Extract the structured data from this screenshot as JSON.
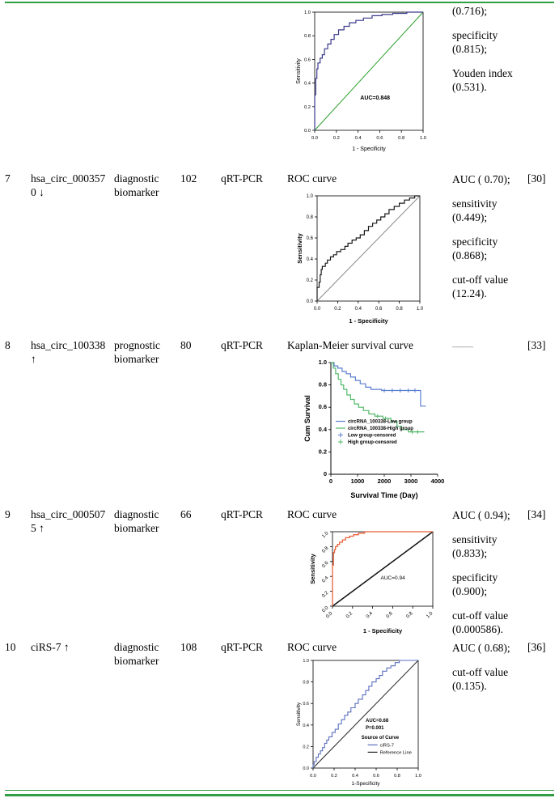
{
  "colors": {
    "accent_green": "#2f9e44",
    "dash_gray": "#8d8d8d"
  },
  "table": {
    "rows": [
      {
        "num": "",
        "name": "",
        "type": "",
        "n": "",
        "method": "",
        "evidence_label": "",
        "results": [
          "(0.716);",
          "specificity (0.815);",
          "Youden index (0.531)."
        ],
        "ref": ""
      },
      {
        "num": "7",
        "name": "hsa_circ_0003570 ↓",
        "type": "diagnostic biomarker",
        "n": "102",
        "method": "qRT-PCR",
        "evidence_label": "ROC curve",
        "results": [
          "AUC ( 0.70);",
          "sensitivity (0.449);",
          "specificity (0.868);",
          "cut-off value (12.24)."
        ],
        "ref": "[30]"
      },
      {
        "num": "8",
        "name": "hsa_circ_100338 ↑",
        "type": "prognostic biomarker",
        "n": "80",
        "method": "qRT-PCR",
        "evidence_label": "Kaplan-Meier survival curve",
        "results": [
          "——"
        ],
        "ref": "[33]"
      },
      {
        "num": "9",
        "name": "hsa_circ_0005075 ↑",
        "type": "diagnostic biomarker",
        "n": "66",
        "method": "qRT-PCR",
        "evidence_label": "ROC curve",
        "results": [
          "AUC ( 0.94);",
          "sensitivity (0.833);",
          "specificity (0.900);",
          "cut-off value (0.000586)."
        ],
        "ref": "[34]"
      },
      {
        "num": "10",
        "name": "ciRS-7 ↑",
        "type": "diagnostic biomarker",
        "n": "108",
        "method": "qRT-PCR",
        "evidence_label": "ROC curve",
        "results": [
          "AUC ( 0.68);",
          "cut-off value (0.135)."
        ],
        "ref": "[36]"
      }
    ]
  },
  "chart_data": [
    {
      "type": "line",
      "subtype": "roc",
      "title": "",
      "width": 170,
      "height": 180,
      "margins": {
        "l": 26,
        "r": 10,
        "t": 6,
        "b": 28
      },
      "xrange": [
        0,
        1
      ],
      "yrange": [
        0,
        1
      ],
      "xticks": [
        0,
        0.2,
        0.4,
        0.6,
        0.8,
        1
      ],
      "xtick_labels": [
        "0.0",
        "0.2",
        "0.4",
        "0.6",
        "0.8",
        "1.0"
      ],
      "yticks": [
        0,
        0.2,
        0.4,
        0.6,
        0.8,
        1
      ],
      "ytick_labels": [
        "0.0",
        "0.2",
        "0.4",
        "0.6",
        "0.8",
        "1.0"
      ],
      "xlabel": "1 - Specificity",
      "ylabel": "Sensitivity",
      "frame": "box",
      "tick_size": 5.8,
      "label_size": 7,
      "diagonal": {
        "color": "#2ca02c",
        "width": 1
      },
      "series": [
        {
          "name": "ROC curve",
          "color": "#3a3a8c",
          "width": 1.2,
          "step": "vh",
          "points": [
            [
              0,
              0
            ],
            [
              0,
              0.18
            ],
            [
              0.01,
              0.3
            ],
            [
              0.02,
              0.44
            ],
            [
              0.03,
              0.52
            ],
            [
              0.05,
              0.57
            ],
            [
              0.07,
              0.61
            ],
            [
              0.09,
              0.64
            ],
            [
              0.12,
              0.69
            ],
            [
              0.15,
              0.73
            ],
            [
              0.18,
              0.77
            ],
            [
              0.22,
              0.81
            ],
            [
              0.27,
              0.85
            ],
            [
              0.32,
              0.88
            ],
            [
              0.38,
              0.91
            ],
            [
              0.45,
              0.93
            ],
            [
              0.53,
              0.95
            ],
            [
              0.62,
              0.97
            ],
            [
              0.72,
              0.98
            ],
            [
              0.85,
              0.99
            ],
            [
              1,
              1
            ]
          ]
        }
      ],
      "annotations": [
        {
          "text": "AUC=0.848",
          "x": 0.42,
          "y": 0.26,
          "size": 7,
          "bold": true
        }
      ]
    },
    {
      "type": "line",
      "subtype": "roc",
      "title": "",
      "width": 164,
      "height": 168,
      "margins": {
        "l": 27,
        "r": 10,
        "t": 8,
        "b": 30
      },
      "xrange": [
        0,
        1
      ],
      "yrange": [
        0,
        1
      ],
      "xticks": [
        0,
        0.2,
        0.4,
        0.6,
        0.8,
        1
      ],
      "xtick_labels": [
        "0.0",
        "0.2",
        "0.4",
        "0.6",
        "0.8",
        "1.0"
      ],
      "yticks": [
        0,
        0.2,
        0.4,
        0.6,
        0.8,
        1
      ],
      "ytick_labels": [
        "0.0",
        "0.2",
        "0.4",
        "0.6",
        "0.8",
        "1.0"
      ],
      "xlabel": "1 - Specificity",
      "ylabel": "Sensitivity",
      "frame": "box",
      "tick_size": 6,
      "label_size": 7.5,
      "label_bold": true,
      "diagonal": {
        "color": "#8a8a8a",
        "width": 1
      },
      "series": [
        {
          "name": "ROC curve",
          "color": "#1a1a1a",
          "width": 1.2,
          "step": "vh",
          "points": [
            [
              0,
              0
            ],
            [
              0,
              0.09
            ],
            [
              0.02,
              0.13
            ],
            [
              0.03,
              0.18
            ],
            [
              0.04,
              0.25
            ],
            [
              0.05,
              0.3
            ],
            [
              0.08,
              0.33
            ],
            [
              0.1,
              0.36
            ],
            [
              0.13,
              0.39
            ],
            [
              0.16,
              0.42
            ],
            [
              0.19,
              0.44
            ],
            [
              0.23,
              0.47
            ],
            [
              0.27,
              0.49
            ],
            [
              0.3,
              0.52
            ],
            [
              0.34,
              0.55
            ],
            [
              0.38,
              0.58
            ],
            [
              0.42,
              0.6
            ],
            [
              0.46,
              0.63
            ],
            [
              0.5,
              0.67
            ],
            [
              0.54,
              0.71
            ],
            [
              0.58,
              0.74
            ],
            [
              0.62,
              0.77
            ],
            [
              0.66,
              0.8
            ],
            [
              0.7,
              0.83
            ],
            [
              0.75,
              0.87
            ],
            [
              0.8,
              0.9
            ],
            [
              0.85,
              0.93
            ],
            [
              0.9,
              0.96
            ],
            [
              0.95,
              0.98
            ],
            [
              1,
              1
            ]
          ]
        }
      ],
      "annotations": []
    },
    {
      "type": "line",
      "subtype": "kaplan-meier",
      "title": "",
      "width": 176,
      "height": 178,
      "margins": {
        "l": 34,
        "r": 10,
        "t": 8,
        "b": 32
      },
      "xrange": [
        0,
        4000
      ],
      "yrange": [
        0,
        1
      ],
      "xticks": [
        0,
        1000,
        2000,
        3000,
        4000
      ],
      "xtick_labels": [
        "0",
        "1000",
        "2000",
        "3000",
        "4000"
      ],
      "yticks": [
        0,
        0.2,
        0.4,
        0.6,
        0.8,
        1
      ],
      "ytick_labels": [
        "0",
        "0.2",
        "0.4",
        "0.6",
        "0.8",
        "1.0"
      ],
      "xlabel": "Survival Time (Day)",
      "ylabel": "Cum Survival",
      "frame": "lb",
      "tick_size": 7.5,
      "tick_bold": true,
      "label_size": 9,
      "label_bold": true,
      "series": [
        {
          "name": "circRNA_100338-Low group",
          "color": "#5b7fd0",
          "width": 1.2,
          "step": "hv",
          "points": [
            [
              0,
              1
            ],
            [
              120,
              0.97
            ],
            [
              260,
              0.95
            ],
            [
              420,
              0.92
            ],
            [
              580,
              0.9
            ],
            [
              740,
              0.87
            ],
            [
              920,
              0.84
            ],
            [
              1100,
              0.81
            ],
            [
              1300,
              0.78
            ],
            [
              1500,
              0.76
            ],
            [
              1900,
              0.75
            ],
            [
              3300,
              0.75
            ],
            [
              3360,
              0.61
            ],
            [
              3560,
              0.61
            ]
          ],
          "censored": [
            [
              2000,
              0.75
            ],
            [
              2300,
              0.75
            ],
            [
              2600,
              0.75
            ],
            [
              2900,
              0.75
            ],
            [
              3150,
              0.75
            ]
          ]
        },
        {
          "name": "circRNA_100338-High group",
          "color": "#53b96a",
          "width": 1.2,
          "step": "hv",
          "points": [
            [
              0,
              1
            ],
            [
              90,
              0.95
            ],
            [
              180,
              0.9
            ],
            [
              280,
              0.85
            ],
            [
              380,
              0.8
            ],
            [
              480,
              0.76
            ],
            [
              600,
              0.71
            ],
            [
              740,
              0.67
            ],
            [
              880,
              0.63
            ],
            [
              1040,
              0.6
            ],
            [
              1220,
              0.57
            ],
            [
              1420,
              0.54
            ],
            [
              1650,
              0.52
            ],
            [
              1950,
              0.5
            ],
            [
              2250,
              0.47
            ],
            [
              2480,
              0.43
            ],
            [
              2650,
              0.4
            ],
            [
              2900,
              0.38
            ],
            [
              3500,
              0.38
            ]
          ],
          "censored": [
            [
              1750,
              0.52
            ],
            [
              2050,
              0.5
            ],
            [
              3050,
              0.38
            ],
            [
              3250,
              0.38
            ]
          ]
        }
      ],
      "annotations": [],
      "legend": {
        "x": 180,
        "y": 0.46,
        "size": 6,
        "bold": true,
        "line_height": 8.5,
        "entries": [
          {
            "swatch": "line",
            "color": "#5b7fd0",
            "label": "circRNA_100338-Low group"
          },
          {
            "swatch": "line",
            "color": "#53b96a",
            "label": "circRNA_100338-High group"
          },
          {
            "swatch": "plus",
            "color": "#5b7fd0",
            "label": "Low group-censored"
          },
          {
            "swatch": "plus",
            "color": "#53b96a",
            "label": "High group-censored"
          }
        ]
      }
    },
    {
      "type": "line",
      "subtype": "roc",
      "title": "",
      "width": 168,
      "height": 136,
      "margins": {
        "l": 30,
        "r": 14,
        "t": 8,
        "b": 36
      },
      "xrange": [
        0,
        1
      ],
      "yrange": [
        0,
        1
      ],
      "xticks": [
        0,
        0.2,
        0.4,
        0.6,
        0.8,
        1
      ],
      "xtick_labels": [
        "0.0",
        "0.2",
        "0.4",
        "0.6",
        "0.8",
        "1.0"
      ],
      "yticks": [
        0,
        0.2,
        0.4,
        0.6,
        0.8,
        1
      ],
      "ytick_labels": [
        "0.0",
        "0.2",
        "0.4",
        "0.6",
        "0.8",
        "1.0"
      ],
      "xlabel": "1 - Specificity",
      "ylabel": "Sensitivity",
      "frame": "box",
      "tick_size": 6,
      "label_size": 7.5,
      "label_bold": true,
      "xtick_rotate": -45,
      "ytick_rotate": -45,
      "diagonal": {
        "color": "#111111",
        "width": 1.5
      },
      "series": [
        {
          "name": "ROC curve",
          "color": "#e8623c",
          "width": 1.3,
          "step": "vh",
          "points": [
            [
              0,
              0
            ],
            [
              0,
              0.47
            ],
            [
              0.01,
              0.55
            ],
            [
              0.02,
              0.72
            ],
            [
              0.03,
              0.76
            ],
            [
              0.05,
              0.8
            ],
            [
              0.07,
              0.83
            ],
            [
              0.1,
              0.86
            ],
            [
              0.13,
              0.89
            ],
            [
              0.17,
              0.92
            ],
            [
              0.21,
              0.94
            ],
            [
              0.26,
              0.96
            ],
            [
              0.32,
              0.98
            ],
            [
              0.4,
              1
            ],
            [
              1,
              1
            ]
          ]
        }
      ],
      "annotations": [
        {
          "text": "AUC=0.94",
          "x": 0.48,
          "y": 0.36,
          "size": 6.5,
          "bold": false
        }
      ]
    },
    {
      "type": "line",
      "subtype": "roc",
      "title": "",
      "width": 166,
      "height": 162,
      "margins": {
        "l": 24,
        "r": 12,
        "t": 5,
        "b": 24
      },
      "xrange": [
        0,
        1
      ],
      "yrange": [
        0,
        1
      ],
      "xticks": [
        0,
        0.2,
        0.4,
        0.6,
        0.8,
        1
      ],
      "xtick_labels": [
        "0.0",
        "0.2",
        "0.4",
        "0.6",
        "0.8",
        "1.0"
      ],
      "yticks": [
        0,
        0.2,
        0.4,
        0.6,
        0.8,
        1
      ],
      "ytick_labels": [
        "0.0",
        "0.2",
        "0.4",
        "0.6",
        "0.8",
        "1.0"
      ],
      "xlabel": "1-Specificity",
      "ylabel": "Sensitivity",
      "frame": "box",
      "tick_size": 5.5,
      "label_size": 6.5,
      "diagonal": {
        "color": "#222222",
        "width": 1
      },
      "series": [
        {
          "name": "ciRS-7",
          "color": "#5a6fbf",
          "width": 1.1,
          "step": "vh",
          "points": [
            [
              0,
              0
            ],
            [
              0.01,
              0.03
            ],
            [
              0.03,
              0.06
            ],
            [
              0.05,
              0.1
            ],
            [
              0.07,
              0.13
            ],
            [
              0.09,
              0.16
            ],
            [
              0.11,
              0.19
            ],
            [
              0.13,
              0.23
            ],
            [
              0.15,
              0.26
            ],
            [
              0.18,
              0.29
            ],
            [
              0.21,
              0.33
            ],
            [
              0.24,
              0.36
            ],
            [
              0.27,
              0.41
            ],
            [
              0.3,
              0.45
            ],
            [
              0.33,
              0.49
            ],
            [
              0.36,
              0.52
            ],
            [
              0.4,
              0.56
            ],
            [
              0.43,
              0.6
            ],
            [
              0.47,
              0.64
            ],
            [
              0.5,
              0.68
            ],
            [
              0.53,
              0.72
            ],
            [
              0.56,
              0.76
            ],
            [
              0.6,
              0.8
            ],
            [
              0.63,
              0.83
            ],
            [
              0.66,
              0.86
            ],
            [
              0.7,
              0.9
            ],
            [
              0.74,
              0.93
            ],
            [
              0.78,
              0.95
            ],
            [
              0.82,
              0.98
            ],
            [
              0.86,
              1
            ],
            [
              1,
              1
            ]
          ]
        }
      ],
      "annotations": [
        {
          "text": "AUC=0.68",
          "x": 0.5,
          "y": 0.43,
          "size": 6,
          "bold": true
        },
        {
          "text": "P=0.001",
          "x": 0.5,
          "y": 0.36,
          "size": 6,
          "bold": true
        },
        {
          "text": "Source of Curve",
          "x": 0.46,
          "y": 0.27,
          "size": 6,
          "bold": true
        }
      ],
      "legend": {
        "x": 0.52,
        "y": 0.2,
        "size": 5.8,
        "bold": false,
        "line_height": 9,
        "entries": [
          {
            "swatch": "line",
            "color": "#5a6fbf",
            "label": "ciRS-7"
          },
          {
            "swatch": "line",
            "color": "#222222",
            "label": "Reference Line"
          }
        ]
      }
    }
  ]
}
